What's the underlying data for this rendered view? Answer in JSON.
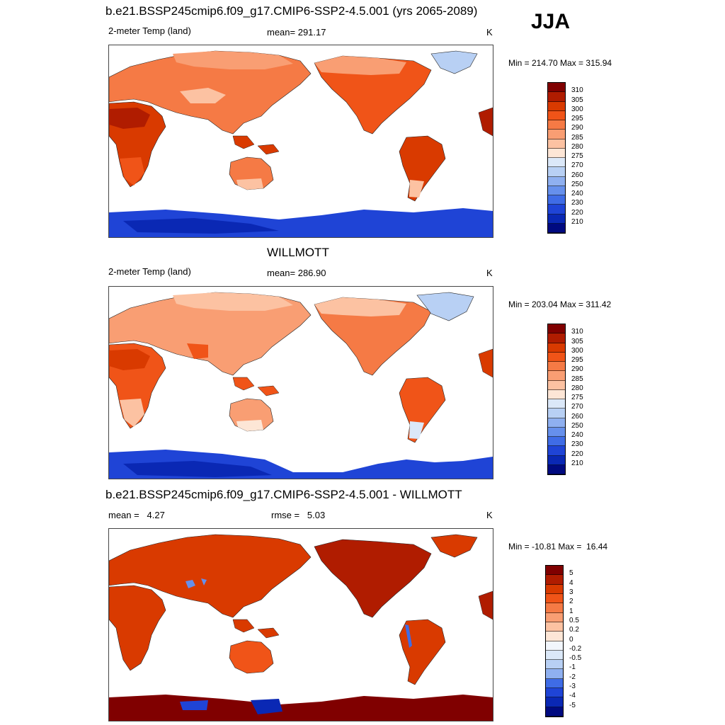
{
  "season": "JJA",
  "panels": [
    {
      "title": "b.e21.BSSP245cmip6.f09_g17.CMIP6-SSP2-4.5.001 (yrs 2065-2089)",
      "left_label": "2-meter Temp (land)",
      "center_label": "mean= 291.17",
      "units": "K",
      "minmax": "Min = 214.70 Max = 315.94",
      "colorbar": {
        "labels": [
          "310",
          "305",
          "300",
          "295",
          "290",
          "285",
          "280",
          "275",
          "270",
          "260",
          "250",
          "240",
          "230",
          "220",
          "210"
        ],
        "colors": [
          "#800000",
          "#b01c00",
          "#d93a00",
          "#f05418",
          "#f57a45",
          "#f99e73",
          "#fcc2a2",
          "#fde6d6",
          "#dbe8f8",
          "#b8d0f4",
          "#8fb0f0",
          "#6690ec",
          "#3f6ce6",
          "#1f44d6",
          "#0a28b4",
          "#000a80"
        ]
      }
    },
    {
      "title": "WILLMOTT",
      "left_label": "2-meter Temp (land)",
      "center_label": "mean= 286.90",
      "units": "K",
      "minmax": "Min = 203.04 Max = 311.42",
      "colorbar": {
        "labels": [
          "310",
          "305",
          "300",
          "295",
          "290",
          "285",
          "280",
          "275",
          "270",
          "260",
          "250",
          "240",
          "230",
          "220",
          "210"
        ],
        "colors": [
          "#800000",
          "#b01c00",
          "#d93a00",
          "#f05418",
          "#f57a45",
          "#f99e73",
          "#fcc2a2",
          "#fde6d6",
          "#dbe8f8",
          "#b8d0f4",
          "#8fb0f0",
          "#6690ec",
          "#3f6ce6",
          "#1f44d6",
          "#0a28b4",
          "#000a80"
        ]
      }
    },
    {
      "title": "b.e21.BSSP245cmip6.f09_g17.CMIP6-SSP2-4.5.001 - WILLMOTT",
      "left_label": "mean =   4.27",
      "center_label": "rmse =   5.03",
      "units": "K",
      "minmax": "Min = -10.81 Max =  16.44",
      "colorbar": {
        "labels": [
          "5",
          "4",
          "3",
          "2",
          "1",
          "0.5",
          "0.2",
          "0",
          "-0.2",
          "-0.5",
          "-1",
          "-2",
          "-3",
          "-4",
          "-5"
        ],
        "colors": [
          "#800000",
          "#b01c00",
          "#d93a00",
          "#f05418",
          "#f57a45",
          "#f99e73",
          "#fcc2a2",
          "#fde6d6",
          "#f2f6fc",
          "#dbe8f8",
          "#b8d0f4",
          "#8fb0f0",
          "#3f6ce6",
          "#1f44d6",
          "#0a28b4",
          "#000a80"
        ]
      }
    }
  ]
}
